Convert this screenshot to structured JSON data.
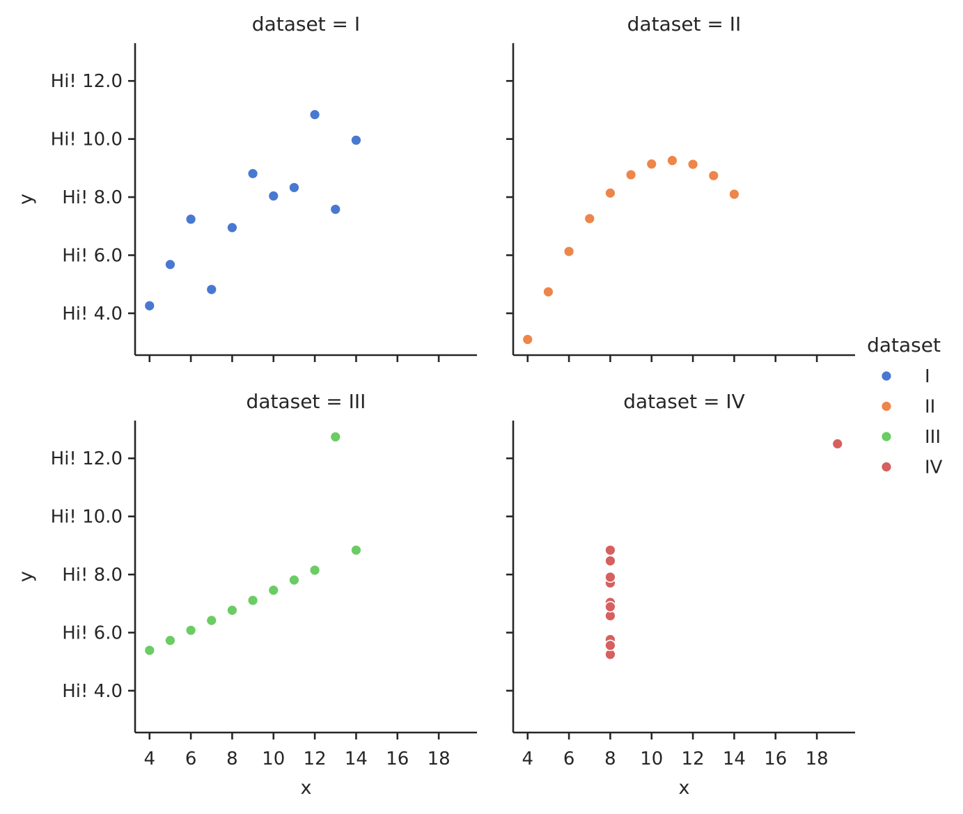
{
  "chart_data": {
    "type": "scatter",
    "legend": {
      "title": "dataset",
      "placement": "right",
      "entries": [
        "I",
        "II",
        "III",
        "IV"
      ]
    },
    "xlim": [
      3.3,
      19.85
    ],
    "ylim": [
      2.56,
      13.3
    ],
    "x_ticks": [
      4,
      6,
      8,
      10,
      12,
      14,
      16,
      18
    ],
    "y_ticks": [
      4,
      6,
      8,
      10,
      12
    ],
    "y_tick_labels": [
      "Hi! 4.0",
      "Hi! 6.0",
      "Hi! 8.0",
      "Hi! 10.0",
      "Hi! 12.0"
    ],
    "xlabel": "x",
    "ylabel": "y",
    "grid": false,
    "facet_titles": [
      "dataset = I",
      "dataset = II",
      "dataset = III",
      "dataset = IV"
    ],
    "series": [
      {
        "name": "I",
        "color": "#4878d0",
        "x": [
          10,
          8,
          13,
          9,
          11,
          14,
          6,
          4,
          12,
          7,
          5
        ],
        "y": [
          8.04,
          6.95,
          7.58,
          8.81,
          8.33,
          9.96,
          7.24,
          4.26,
          10.84,
          4.82,
          5.68
        ]
      },
      {
        "name": "II",
        "color": "#ee854a",
        "x": [
          10,
          8,
          13,
          9,
          11,
          14,
          6,
          4,
          12,
          7,
          5
        ],
        "y": [
          9.14,
          8.14,
          8.74,
          8.77,
          9.26,
          8.1,
          6.13,
          3.1,
          9.13,
          7.26,
          4.74
        ]
      },
      {
        "name": "III",
        "color": "#6acc64",
        "x": [
          10,
          8,
          13,
          9,
          11,
          14,
          6,
          4,
          12,
          7,
          5
        ],
        "y": [
          7.46,
          6.77,
          12.74,
          7.11,
          7.81,
          8.84,
          6.08,
          5.39,
          8.15,
          6.42,
          5.73
        ]
      },
      {
        "name": "IV",
        "color": "#d65f5f",
        "x": [
          8,
          8,
          8,
          8,
          8,
          8,
          8,
          19,
          8,
          8,
          8
        ],
        "y": [
          6.58,
          5.76,
          7.71,
          8.84,
          8.47,
          7.04,
          5.25,
          12.5,
          5.56,
          7.91,
          6.89
        ]
      }
    ]
  }
}
